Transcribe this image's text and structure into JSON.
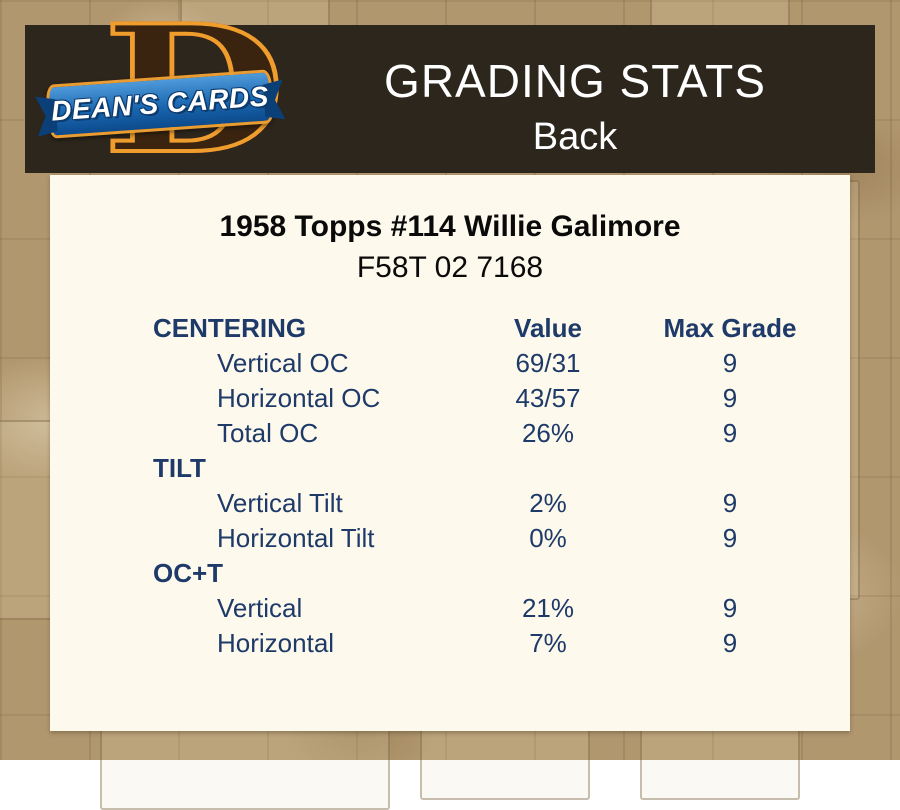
{
  "brand": {
    "monogram": "D",
    "banner_text": "DEAN'S CARDS"
  },
  "header": {
    "title": "GRADING STATS",
    "subtitle": "Back"
  },
  "card": {
    "title": "1958 Topps #114 Willie Galimore",
    "code": "F58T 02 7168"
  },
  "colors": {
    "header_bg": "#2d261c",
    "page_bg": "#b1976e",
    "panel_bg": "#fdf9ec",
    "stats_text": "#1e3a69",
    "logo_red": "#c8302e",
    "logo_gold": "#ef9e2d",
    "logo_blue": "#1a67b0"
  },
  "table": {
    "header": {
      "col1": "CENTERING",
      "col2": "Value",
      "col3": "Max Grade"
    },
    "rows": [
      {
        "type": "item",
        "label": "Vertical OC",
        "value": "69/31",
        "grade": "9"
      },
      {
        "type": "item",
        "label": "Horizontal OC",
        "value": "43/57",
        "grade": "9"
      },
      {
        "type": "item",
        "label": "Total OC",
        "value": "26%",
        "grade": "9"
      },
      {
        "type": "section",
        "label": "TILT",
        "value": "",
        "grade": ""
      },
      {
        "type": "item",
        "label": "Vertical Tilt",
        "value": "2%",
        "grade": "9"
      },
      {
        "type": "item",
        "label": "Horizontal Tilt",
        "value": "0%",
        "grade": "9"
      },
      {
        "type": "section",
        "label": "OC+T",
        "value": "",
        "grade": ""
      },
      {
        "type": "item",
        "label": "Vertical",
        "value": "21%",
        "grade": "9"
      },
      {
        "type": "item",
        "label": "Horizontal",
        "value": "7%",
        "grade": "9"
      }
    ]
  }
}
